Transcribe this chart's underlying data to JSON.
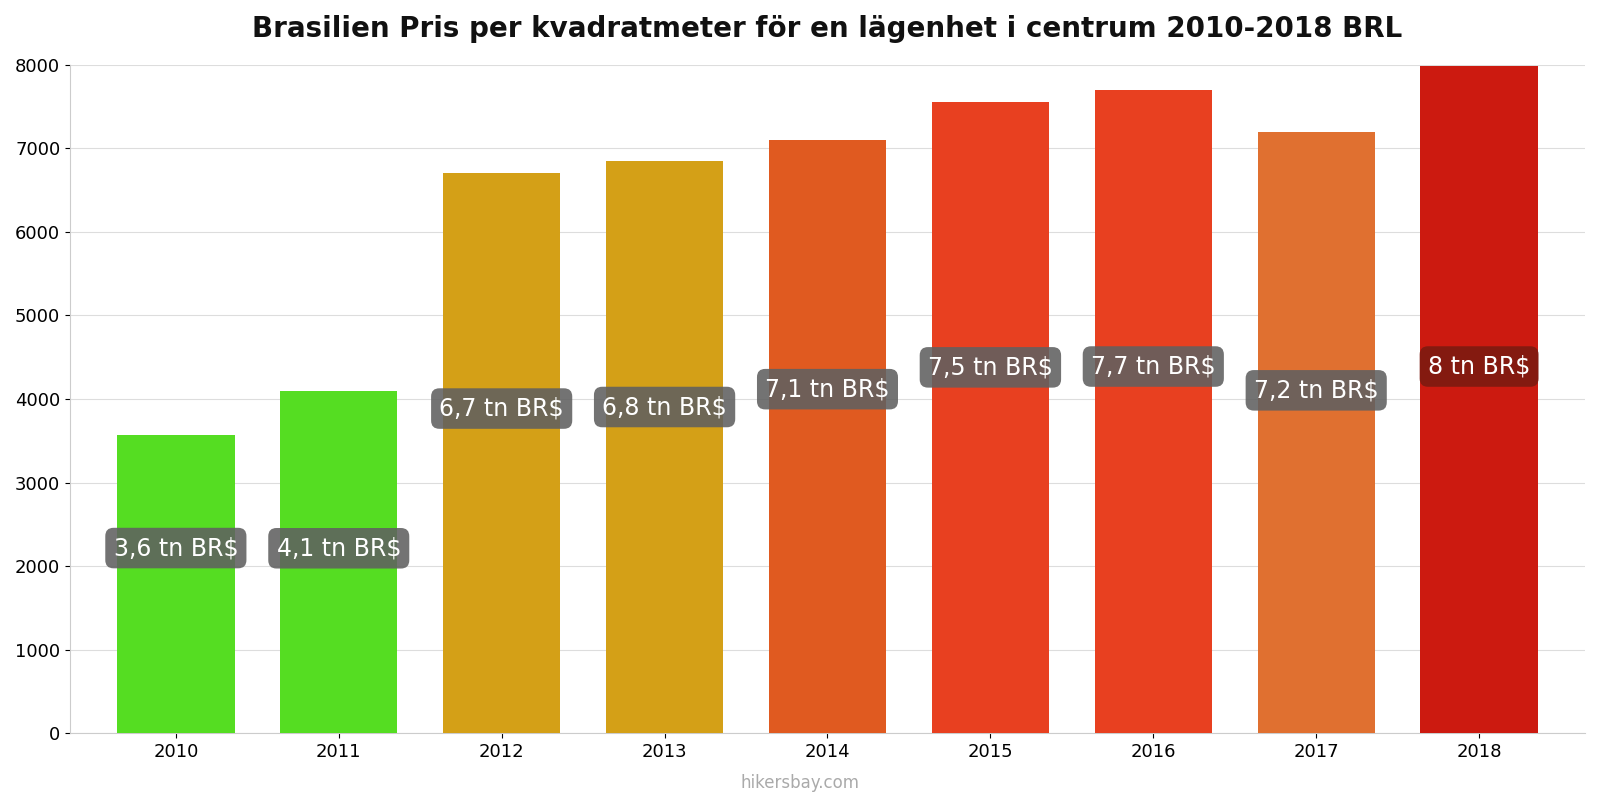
{
  "title": "Brasilien Pris per kvadratmeter för en lägenhet i centrum 2010-2018 BRL",
  "years": [
    2010,
    2011,
    2012,
    2013,
    2014,
    2015,
    2016,
    2017,
    2018
  ],
  "values": [
    3575,
    4100,
    6700,
    6850,
    7100,
    7550,
    7700,
    7200,
    7980
  ],
  "bar_colors": [
    "#55dd22",
    "#55dd22",
    "#d4a017",
    "#d4a017",
    "#e05a20",
    "#e84020",
    "#e84020",
    "#e07030",
    "#cc1a10"
  ],
  "labels": [
    "3,6 tn BR$",
    "4,1 tn BR$",
    "6,7 tn BR$",
    "6,8 tn BR$",
    "7,1 tn BR$",
    "7,5 tn BR$",
    "7,7 tn BR$",
    "7,2 tn BR$",
    "8 tn BR$"
  ],
  "label_bg_colors": [
    "#606060",
    "#606060",
    "#606060",
    "#606060",
    "#606060",
    "#606060",
    "#606060",
    "#606060",
    "#7a1a10"
  ],
  "ylim": [
    0,
    8000
  ],
  "yticks": [
    0,
    1000,
    2000,
    3000,
    4000,
    5000,
    6000,
    7000,
    8000
  ],
  "label_y_fractions": [
    0.62,
    0.54,
    0.58,
    0.57,
    0.58,
    0.58,
    0.57,
    0.57,
    0.55
  ],
  "watermark": "hikersbay.com",
  "background_color": "#ffffff",
  "title_fontsize": 20,
  "label_fontsize": 17
}
